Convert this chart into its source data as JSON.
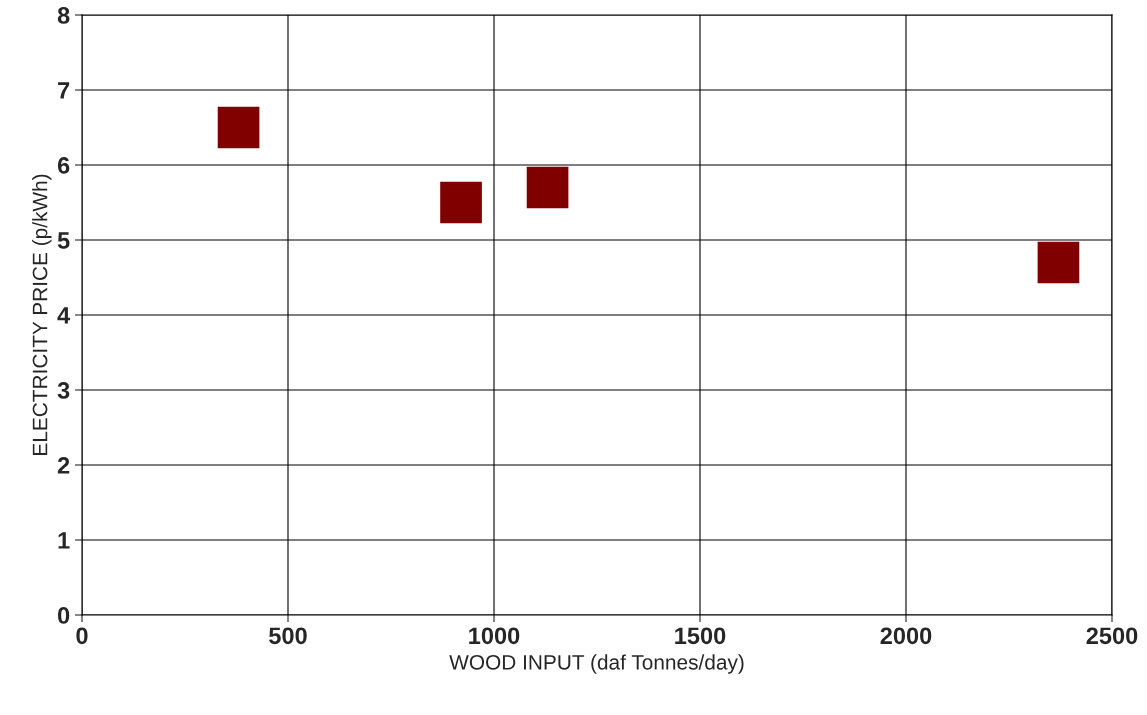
{
  "chart_data": {
    "type": "scatter",
    "xlabel": "WOOD INPUT (daf Tonnes/day)",
    "ylabel": "ELECTRICITY PRICE (p/kWh)",
    "x": [
      380,
      920,
      1130,
      2370
    ],
    "values": [
      6.5,
      5.5,
      5.7,
      4.7
    ],
    "color": "#800000",
    "marker": "square",
    "xlim": [
      0,
      2500
    ],
    "xticks": [
      0,
      500,
      1000,
      1500,
      2000,
      2500
    ],
    "ylim": [
      0,
      8
    ],
    "yticks": [
      0,
      1,
      2,
      3,
      4,
      5,
      6,
      7,
      8
    ],
    "grid": true,
    "legend": false
  }
}
